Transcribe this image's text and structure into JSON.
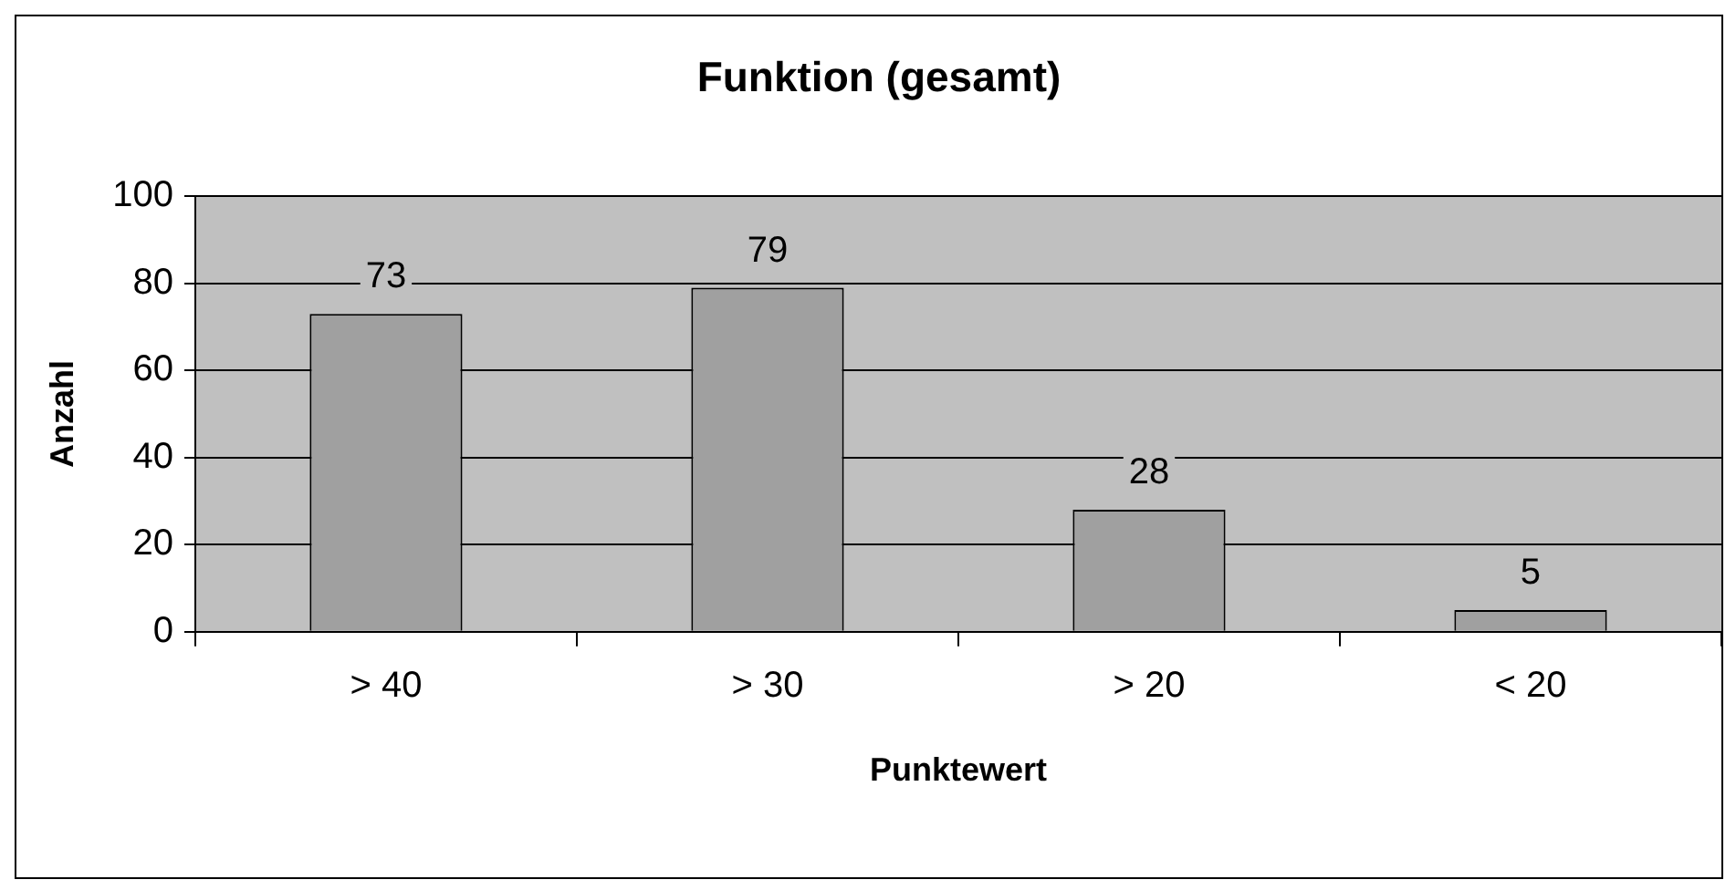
{
  "chart_data": {
    "type": "bar",
    "title": "Funktion (gesamt)",
    "xlabel": "Punktewert",
    "ylabel": "Anzahl",
    "categories": [
      "> 40",
      "> 30",
      "> 20",
      "< 20"
    ],
    "values": [
      73,
      79,
      28,
      5
    ],
    "color": "#a0a0a0",
    "ylim": [
      0,
      100
    ],
    "yticks": [
      0,
      20,
      40,
      60,
      80,
      100
    ],
    "grid": "y",
    "data_labels": true
  }
}
